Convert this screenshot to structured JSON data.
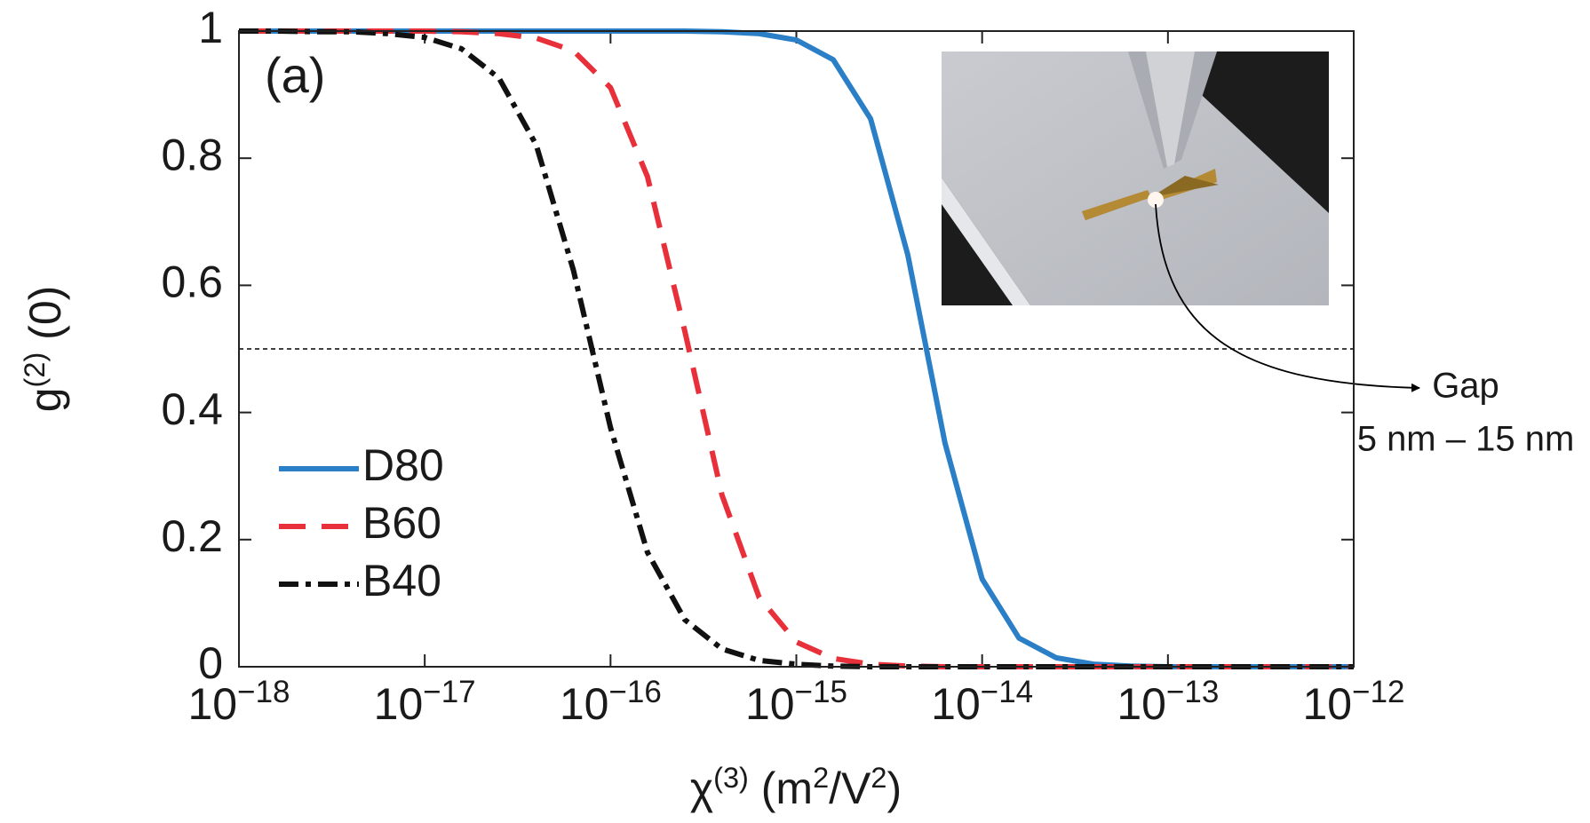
{
  "chart_data": {
    "type": "line",
    "x_label": "χ(3) (m2/V2)",
    "y_label": "g(2) (0)",
    "panel_label": "(a)",
    "annotations": [
      "Gap",
      "5 nm – 15 nm"
    ],
    "xscale": "log",
    "xlim": [
      1e-18,
      1e-12
    ],
    "xticks": [
      {
        "value": 1e-18,
        "label": "10−18"
      },
      {
        "value": 1e-17,
        "label": "10−17"
      },
      {
        "value": 1e-16,
        "label": "10−16"
      },
      {
        "value": 1e-15,
        "label": "10−15"
      },
      {
        "value": 1e-14,
        "label": "10−14"
      },
      {
        "value": 1e-13,
        "label": "10−13"
      },
      {
        "value": 1e-12,
        "label": "10−12"
      }
    ],
    "ylim": [
      0,
      1
    ],
    "yticks": [
      0,
      0.2,
      0.4,
      0.6,
      0.8,
      1
    ],
    "hline": 0.5,
    "legend": "lower left",
    "x": [
      1e-18,
      1.58e-18,
      2.51e-18,
      3.98e-18,
      6.31e-18,
      1e-17,
      1.58e-17,
      2.51e-17,
      3.98e-17,
      6.31e-17,
      1e-16,
      1.58e-16,
      2.51e-16,
      3.98e-16,
      6.31e-16,
      1e-15,
      1.58e-15,
      2.51e-15,
      3.98e-15,
      6.31e-15,
      1e-14,
      1.58e-14,
      2.51e-14,
      3.98e-14,
      6.31e-14,
      1e-13,
      1.58e-13,
      2.51e-13,
      3.98e-13,
      6.31e-13,
      1e-12
    ],
    "series": [
      {
        "name": "D80",
        "color": "#2a7fc6",
        "dash": "solid",
        "values": [
          1,
          1,
          1,
          1,
          1,
          1,
          1,
          1,
          1,
          1,
          1,
          1,
          1,
          0.999,
          0.996,
          0.986,
          0.955,
          0.862,
          0.648,
          0.352,
          0.138,
          0.045,
          0.014,
          0.004,
          0.001,
          0,
          0,
          0,
          0,
          0,
          0
        ]
      },
      {
        "name": "B60",
        "color": "#e8303a",
        "dash": "dashed",
        "values": [
          1,
          1,
          1,
          1,
          1,
          1,
          0.999,
          0.996,
          0.989,
          0.969,
          0.911,
          0.771,
          0.528,
          0.27,
          0.109,
          0.039,
          0.013,
          0.004,
          0.001,
          0,
          0,
          0,
          0,
          0,
          0,
          0,
          0,
          0,
          0,
          0,
          0
        ]
      },
      {
        "name": "B40",
        "color": "#111111",
        "dash": "dashdot",
        "values": [
          1,
          1,
          0.999,
          0.999,
          0.996,
          0.99,
          0.972,
          0.926,
          0.821,
          0.624,
          0.376,
          0.18,
          0.074,
          0.028,
          0.01,
          0.004,
          0.001,
          0,
          0,
          0,
          0,
          0,
          0,
          0,
          0,
          0,
          0,
          0,
          0,
          0,
          0
        ]
      }
    ]
  }
}
